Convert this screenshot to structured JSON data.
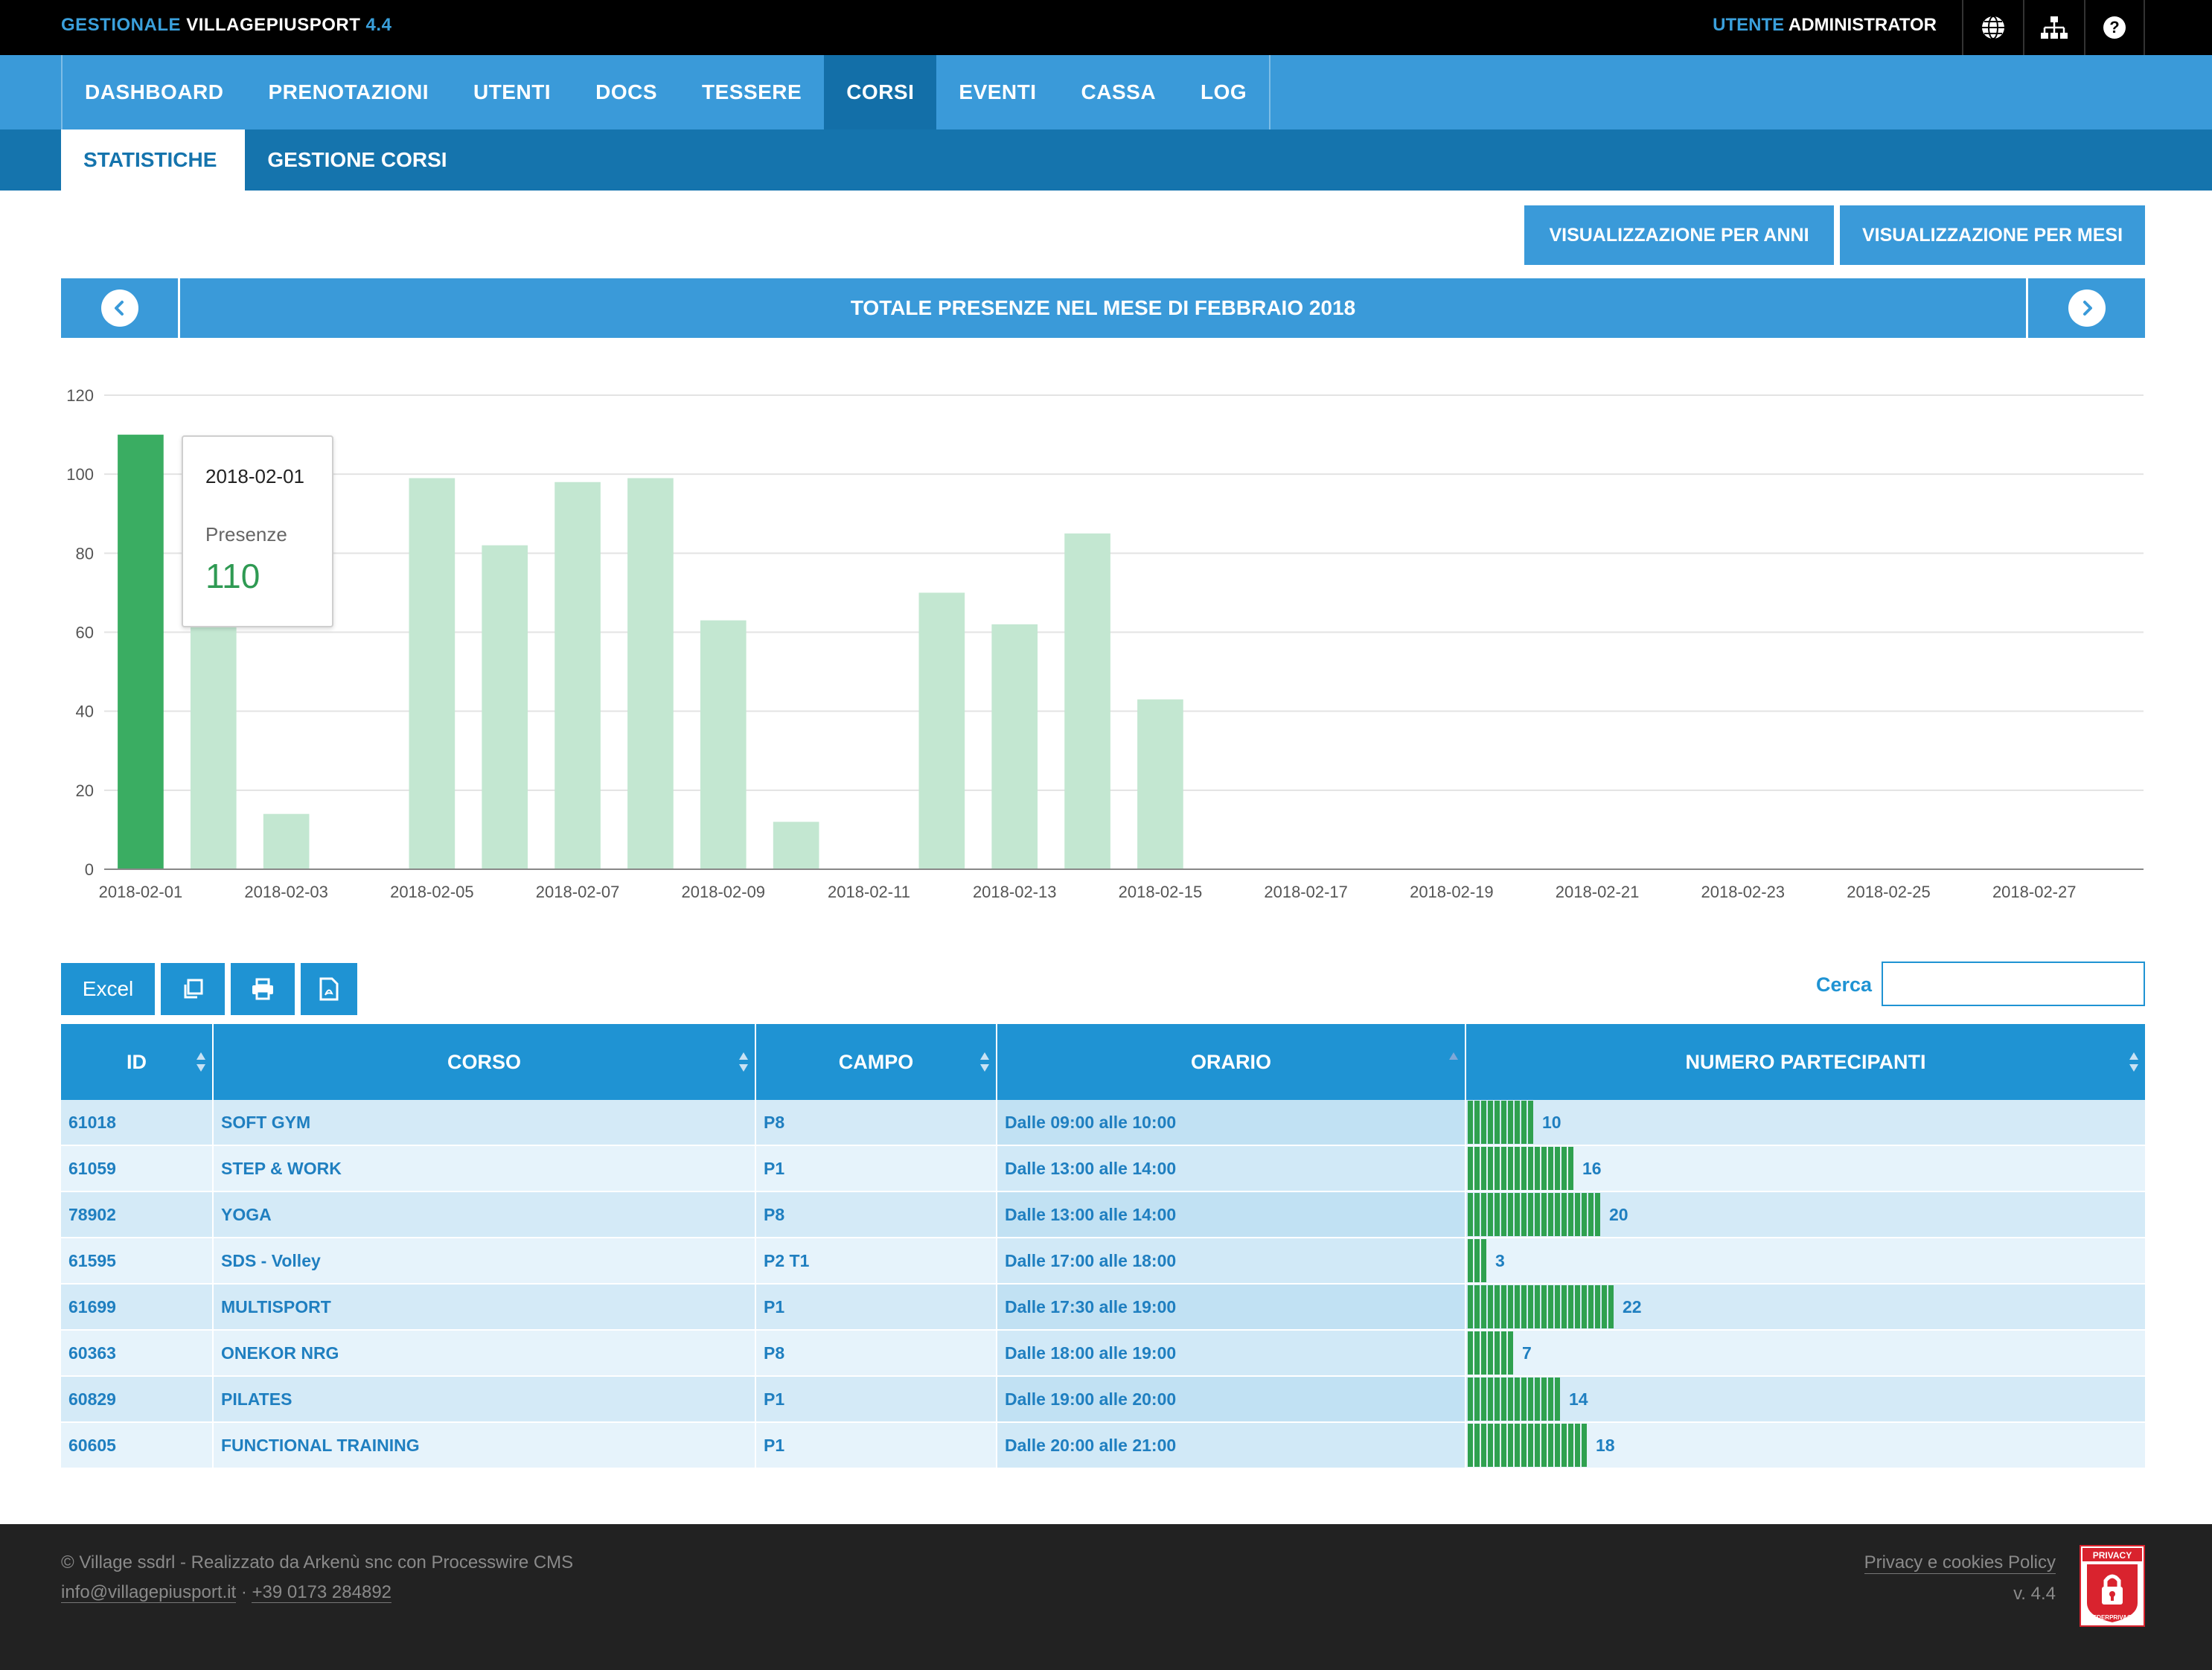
{
  "app": {
    "title_prefix": "GESTIONALE",
    "title_name": "VILLAGEPIUSPORT",
    "version": "4.4",
    "user_prefix": "UTENTE",
    "user_name": "ADMINISTRATOR",
    "icons": [
      "globe-icon",
      "sitemap-icon",
      "help-icon"
    ]
  },
  "nav": {
    "items": [
      "DASHBOARD",
      "PRENOTAZIONI",
      "UTENTI",
      "DOCS",
      "TESSERE",
      "CORSI",
      "EVENTI",
      "CASSA",
      "LOG"
    ],
    "active": "CORSI"
  },
  "subnav": {
    "items": [
      "STATISTICHE",
      "GESTIONE CORSI"
    ],
    "active": "STATISTICHE"
  },
  "view_buttons": {
    "years": "VISUALIZZAZIONE PER ANNI",
    "months": "VISUALIZZAZIONE PER MESI"
  },
  "month_title": "TOTALE PRESENZE NEL MESE DI FEBBRAIO 2018",
  "chart_data": {
    "type": "bar",
    "categories": [
      "2018-02-01",
      "2018-02-02",
      "2018-02-03",
      "2018-02-04",
      "2018-02-05",
      "2018-02-06",
      "2018-02-07",
      "2018-02-08",
      "2018-02-09",
      "2018-02-10",
      "2018-02-11",
      "2018-02-12",
      "2018-02-13",
      "2018-02-14",
      "2018-02-15",
      "2018-02-16",
      "2018-02-17",
      "2018-02-18",
      "2018-02-19",
      "2018-02-20",
      "2018-02-21",
      "2018-02-22",
      "2018-02-23",
      "2018-02-24",
      "2018-02-25",
      "2018-02-26",
      "2018-02-27",
      "2018-02-28"
    ],
    "x_tick_labels": [
      "2018-02-01",
      "2018-02-03",
      "2018-02-05",
      "2018-02-07",
      "2018-02-09",
      "2018-02-11",
      "2018-02-13",
      "2018-02-15",
      "2018-02-17",
      "2018-02-19",
      "2018-02-21",
      "2018-02-23",
      "2018-02-25",
      "2018-02-27"
    ],
    "series": [
      {
        "name": "Presenze",
        "values": [
          110,
          62,
          14,
          0,
          99,
          82,
          98,
          99,
          63,
          12,
          0,
          70,
          62,
          85,
          43,
          0,
          0,
          0,
          0,
          0,
          0,
          0,
          0,
          0,
          0,
          0,
          0,
          0
        ]
      }
    ],
    "ylim": [
      0,
      120
    ],
    "yticks": [
      0,
      20,
      40,
      60,
      80,
      100,
      120
    ],
    "highlighted_index": 0,
    "colors": {
      "highlight": "#3aad62",
      "bar": "#c3e7d1",
      "grid": "#e3e3e3",
      "axis": "#888888"
    },
    "grid": true,
    "legend": "none"
  },
  "tooltip": {
    "date": "2018-02-01",
    "label": "Presenze",
    "value": "110"
  },
  "export": {
    "excel": "Excel",
    "icons": [
      "copy-icon",
      "print-icon",
      "pdf-icon"
    ]
  },
  "search": {
    "label": "Cerca",
    "value": "",
    "placeholder": ""
  },
  "table": {
    "headers": [
      "ID",
      "CORSO",
      "CAMPO",
      "ORARIO",
      "NUMERO PARTECIPANTI"
    ],
    "rows": [
      {
        "id": "61018",
        "corso": "SOFT GYM",
        "campo": "P8",
        "orario": "Dalle 09:00 alle 10:00",
        "partecipanti": 10
      },
      {
        "id": "61059",
        "corso": "STEP & WORK",
        "campo": "P1",
        "orario": "Dalle 13:00 alle 14:00",
        "partecipanti": 16
      },
      {
        "id": "78902",
        "corso": "YOGA",
        "campo": "P8",
        "orario": "Dalle 13:00 alle 14:00",
        "partecipanti": 20
      },
      {
        "id": "61595",
        "corso": "SDS - Volley",
        "campo": "P2 T1",
        "orario": "Dalle 17:00 alle 18:00",
        "partecipanti": 3
      },
      {
        "id": "61699",
        "corso": "MULTISPORT",
        "campo": "P1",
        "orario": "Dalle 17:30 alle 19:00",
        "partecipanti": 22
      },
      {
        "id": "60363",
        "corso": "ONEKOR NRG",
        "campo": "P8",
        "orario": "Dalle 18:00 alle 19:00",
        "partecipanti": 7
      },
      {
        "id": "60829",
        "corso": "PILATES",
        "campo": "P1",
        "orario": "Dalle 19:00 alle 20:00",
        "partecipanti": 14
      },
      {
        "id": "60605",
        "corso": "FUNCTIONAL TRAINING",
        "campo": "P1",
        "orario": "Dalle 20:00 alle 21:00",
        "partecipanti": 18
      }
    ]
  },
  "footer": {
    "credits": "© Village ssdrl - Realizzato da Arkenù snc con Processwire CMS",
    "email": "info@villagepiusport.it",
    "separator": " · ",
    "phone": "+39 0173 284892",
    "privacy_link": "Privacy e cookies Policy",
    "version": "v. 4.4",
    "badge_top": "PRIVACY",
    "badge_bottom": "FEDERPRIVACY"
  }
}
